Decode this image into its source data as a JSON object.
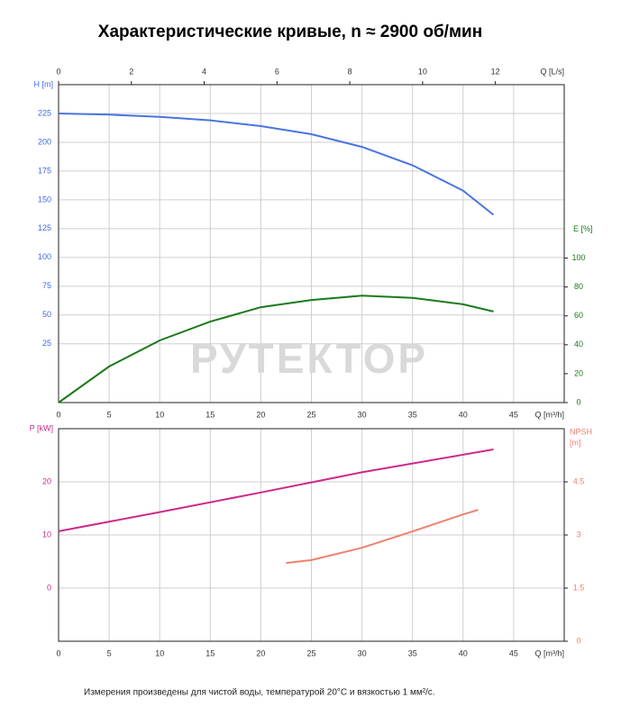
{
  "title": "Характеристические кривые, n ≈ 2900 об/мин",
  "watermark": "РУТЕКТОР",
  "footer": "Измерения произведены для чистой воды, температурой 20°C и вязкостью 1 мм²/с.",
  "chart_data": [
    {
      "type": "line",
      "grid": true,
      "xlabel": "Q [m³/h]",
      "xlim": [
        0,
        50
      ],
      "xticks": [
        0,
        5,
        10,
        15,
        20,
        25,
        30,
        35,
        40,
        45
      ],
      "x2label": "Q [L/s]",
      "x2lim": [
        0,
        13.89
      ],
      "x2ticks": [
        0,
        2,
        4,
        6,
        8,
        10,
        12
      ],
      "ylabel": "H [m]",
      "ylabel_color": "#4169e1",
      "ylim": [
        -26,
        250
      ],
      "yticks": [
        25,
        50,
        75,
        100,
        125,
        150,
        175,
        200,
        225
      ],
      "y2label": "E [%]",
      "y2label_color": "#1a7a1a",
      "y2lim": [
        0,
        220
      ],
      "y2ticks": [
        0,
        20,
        40,
        60,
        80,
        100
      ],
      "series": [
        {
          "color": "#4a74e0",
          "x": [
            0,
            5,
            10,
            15,
            20,
            25,
            30,
            35,
            40,
            43
          ],
          "values": [
            225,
            224,
            222,
            219,
            214,
            207,
            196,
            180,
            158,
            137
          ]
        },
        {
          "color": "#1a7a1a",
          "axis": "y2",
          "x": [
            0,
            5,
            10,
            15,
            20,
            25,
            30,
            35,
            40,
            43
          ],
          "values": [
            0,
            25,
            43,
            56,
            66,
            71,
            74,
            72.5,
            68,
            63
          ]
        }
      ]
    },
    {
      "type": "line",
      "grid": true,
      "xlabel": "Q [m³/h]",
      "xlim": [
        0,
        50
      ],
      "xticks": [
        0,
        5,
        10,
        15,
        20,
        25,
        30,
        35,
        40,
        45
      ],
      "ylabel": "P [kW]",
      "ylabel_color": "#cc2a8a",
      "ylim": [
        -10,
        30
      ],
      "yticks": [
        0,
        10,
        20
      ],
      "y2label": [
        "NPSH",
        "[m]"
      ],
      "y2label_color": "#f08070",
      "y2lim": [
        0,
        6
      ],
      "y2ticks": [
        0,
        1.5,
        3,
        4.5
      ],
      "series": [
        {
          "color": "#cc2a8a",
          "x": [
            0,
            10,
            20,
            30,
            43
          ],
          "values": [
            10.7,
            14.3,
            18,
            21.8,
            26.1
          ]
        },
        {
          "color": "#f08070",
          "axis": "y2",
          "x": [
            22.5,
            25,
            30,
            35,
            40,
            41.5
          ],
          "values": [
            2.21,
            2.29,
            2.64,
            3.1,
            3.58,
            3.71
          ]
        }
      ]
    }
  ]
}
